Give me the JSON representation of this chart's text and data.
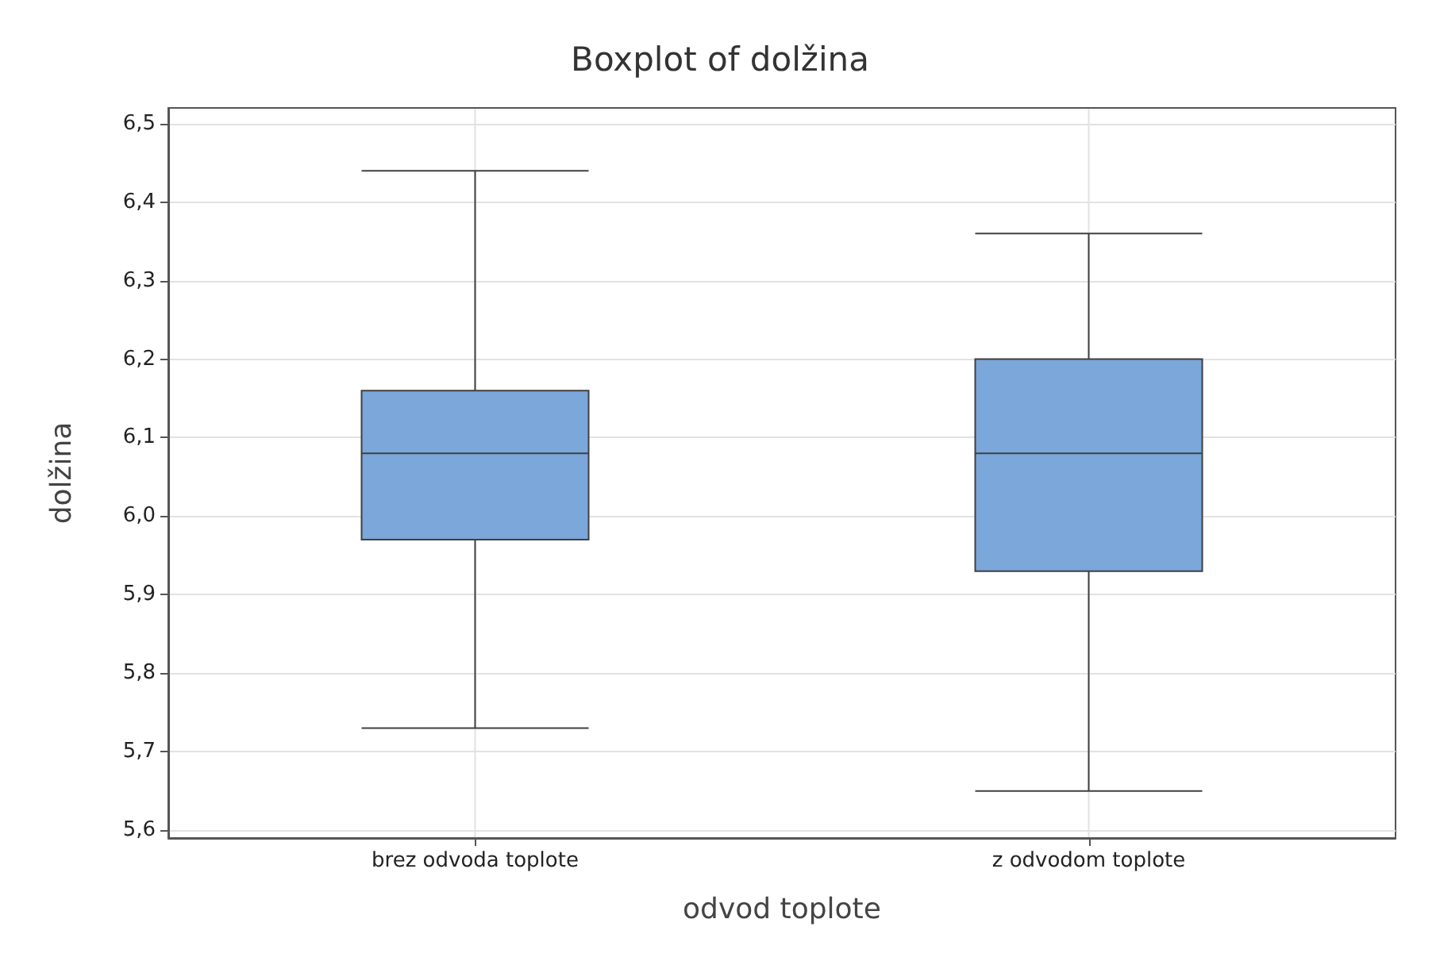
{
  "chart_data": {
    "type": "box",
    "title": "Boxplot of dolžina",
    "xlabel": "odvod toplote",
    "ylabel": "dolžina",
    "categories": [
      "brez odvoda toplote",
      "z odvodom toplote"
    ],
    "series": [
      {
        "color": "#7ba7da",
        "boxes": [
          {
            "low": 5.73,
            "q1": 5.97,
            "median": 6.08,
            "q3": 6.16,
            "high": 6.44
          },
          {
            "low": 5.65,
            "q1": 5.93,
            "median": 6.08,
            "q3": 6.2,
            "high": 6.36
          }
        ]
      }
    ],
    "ylim": [
      5.59,
      6.52
    ],
    "yticks": [
      {
        "value": 5.6,
        "label": "5,6"
      },
      {
        "value": 5.7,
        "label": "5,7"
      },
      {
        "value": 5.8,
        "label": "5,8"
      },
      {
        "value": 5.9,
        "label": "5,9"
      },
      {
        "value": 6.0,
        "label": "6,0"
      },
      {
        "value": 6.1,
        "label": "6,1"
      },
      {
        "value": 6.2,
        "label": "6,2"
      },
      {
        "value": 6.3,
        "label": "6,3"
      },
      {
        "value": 6.4,
        "label": "6,4"
      },
      {
        "value": 6.5,
        "label": "6,5"
      }
    ],
    "grid": true
  }
}
